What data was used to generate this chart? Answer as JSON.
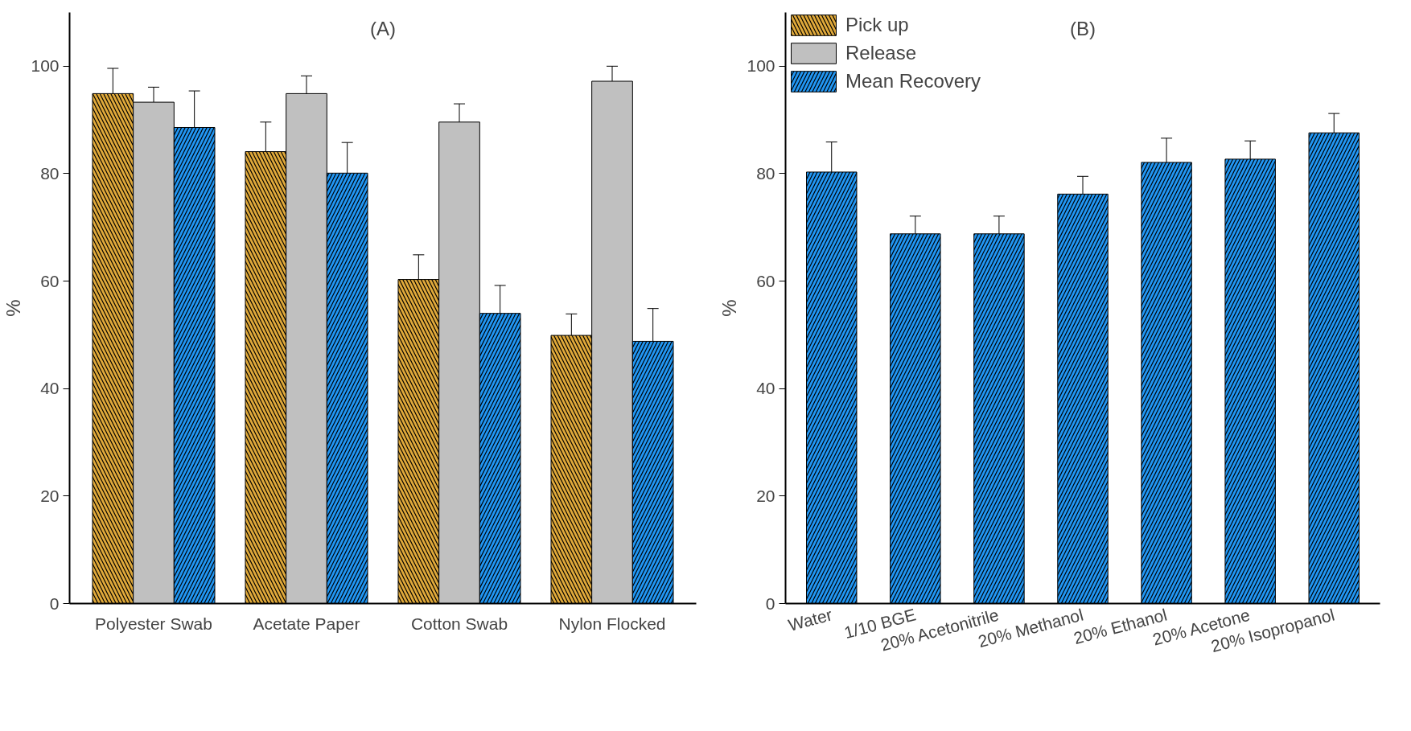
{
  "chart_data": [
    {
      "type": "bar",
      "title": "(A)",
      "ylabel": "%",
      "categories": [
        "Polyester Swab",
        "Acetate Paper",
        "Cotton Swab",
        "Nylon Flocked"
      ],
      "ylim": [
        0,
        110
      ],
      "yticks": [
        0,
        20,
        40,
        60,
        80,
        100
      ],
      "grid": false,
      "legend": "right",
      "series": [
        {
          "name": "Pick up",
          "color": "#e0a93a",
          "values": [
            94.9,
            84.1,
            60.3,
            49.9
          ],
          "errors": [
            4.7,
            5.5,
            4.6,
            4.0
          ]
        },
        {
          "name": "Release",
          "color": "#c0c0c0",
          "values": [
            93.3,
            94.9,
            89.6,
            97.2
          ],
          "errors": [
            2.8,
            3.3,
            3.4,
            2.8
          ]
        },
        {
          "name": "Mean Recovery",
          "color": "#2196f3",
          "values": [
            88.6,
            80.1,
            54.0,
            48.8
          ],
          "errors": [
            6.8,
            5.7,
            5.2,
            6.1
          ]
        }
      ]
    },
    {
      "type": "bar",
      "title": "(B)",
      "ylabel": "%",
      "categories": [
        "Water",
        "1/10 BGE",
        "20% Acetonitrile",
        "20% Methanol",
        "20% Ethanol",
        "20% Acetone",
        "20% Isopropanol"
      ],
      "ylim": [
        0,
        110
      ],
      "yticks": [
        0,
        20,
        40,
        60,
        80,
        100
      ],
      "grid": false,
      "series": [
        {
          "color": "#2196f3",
          "values": [
            80.3,
            68.8,
            68.8,
            76.2,
            82.1,
            82.7,
            87.6
          ],
          "errors": [
            5.6,
            3.3,
            3.3,
            3.3,
            4.5,
            3.4,
            3.6
          ]
        }
      ]
    }
  ]
}
